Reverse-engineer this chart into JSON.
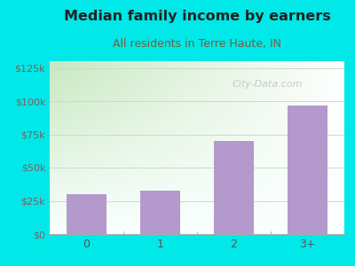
{
  "categories": [
    "0",
    "1",
    "2",
    "3+"
  ],
  "values": [
    30000,
    33000,
    70000,
    97000
  ],
  "bar_color": "#b399cc",
  "background_color": "#00e8e8",
  "title": "Median family income by earners",
  "subtitle": "All residents in Terre Haute, IN",
  "title_color": "#222222",
  "subtitle_color": "#7a5c3a",
  "yticks": [
    0,
    25000,
    50000,
    75000,
    100000,
    125000
  ],
  "ytick_labels": [
    "$0",
    "$25k",
    "$50k",
    "$75k",
    "$100k",
    "$125k"
  ],
  "ylim": [
    0,
    130000
  ],
  "ylabel_color": "#7a6060",
  "xlabel_color": "#555555",
  "watermark": "City-Data.com",
  "grid_color": "#c8ddc8",
  "plot_bg_color": "#e8f5e0"
}
